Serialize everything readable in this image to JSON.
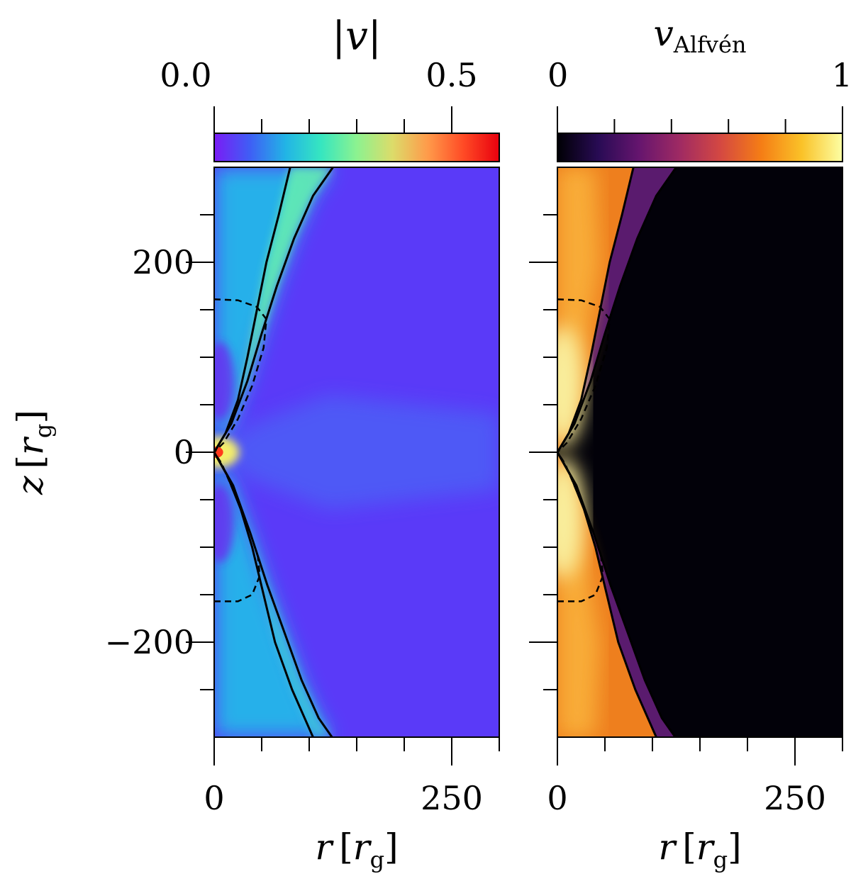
{
  "chart_data": [
    {
      "type": "heatmap",
      "panel": "left",
      "quantity": "speed magnitude",
      "colorbar": {
        "label_main": "|v|",
        "range": [
          0.0,
          0.6
        ],
        "tick_labels": [
          "0.0",
          "0.5"
        ],
        "tick_values": [
          0.0,
          0.5
        ],
        "minor_ticks": [
          0.1,
          0.2,
          0.3,
          0.4
        ],
        "colormap": "rainbow (purple → blue → cyan → green → yellow → orange → red)",
        "colors": [
          "#7a1cf5",
          "#3f5ef5",
          "#22b4e6",
          "#36e6c0",
          "#8cf290",
          "#dcdc6a",
          "#ff9a4a",
          "#ff4a25",
          "#e8000e"
        ]
      },
      "xlabel_main": "r",
      "xlabel_unit": "r",
      "xlabel_unit_sub": "g",
      "ylabel_main": "z",
      "ylabel_unit": "r",
      "ylabel_unit_sub": "g",
      "xlim": [
        0,
        300
      ],
      "ylim": [
        -300,
        300
      ],
      "x_tick_labels": [
        "0",
        "250"
      ],
      "x_tick_values": [
        0,
        250
      ],
      "x_minor_ticks": [
        50,
        100,
        150,
        200,
        300
      ],
      "y_tick_labels": [
        "−200",
        "0",
        "200"
      ],
      "y_tick_values": [
        -200,
        0,
        200
      ],
      "y_minor_ticks": [
        -250,
        -150,
        -100,
        -50,
        50,
        100,
        150,
        250
      ],
      "field_description": {
        "background": "#5a3af8",
        "polar_funnel": "#27b0ea",
        "sheath_peak": "#66f0b0",
        "center_hotspot": "#ff3a1c"
      }
    },
    {
      "type": "heatmap",
      "panel": "right",
      "quantity": "Alfven speed",
      "colorbar": {
        "label_main": "v",
        "label_sub": "Alfvén",
        "range": [
          0,
          1
        ],
        "tick_labels": [
          "0",
          "1"
        ],
        "tick_values": [
          0,
          1
        ],
        "minor_ticks": [
          0.2,
          0.4,
          0.6,
          0.8
        ],
        "colormap": "inferno",
        "colors": [
          "#000004",
          "#280b54",
          "#65156e",
          "#9f2a63",
          "#d44842",
          "#f57d15",
          "#fac228",
          "#fcffa4"
        ]
      },
      "xlabel_main": "r",
      "xlabel_unit": "r",
      "xlabel_unit_sub": "g",
      "xlim": [
        0,
        300
      ],
      "ylim": [
        -300,
        300
      ],
      "x_tick_labels": [
        "0",
        "250"
      ],
      "x_tick_values": [
        0,
        250
      ],
      "x_minor_ticks": [
        50,
        100,
        150,
        200,
        300
      ],
      "y_minor_ticks": [
        -250,
        -200,
        -150,
        -100,
        -50,
        0,
        50,
        100,
        150,
        200,
        250
      ],
      "field_description": {
        "background": "#020109",
        "funnel_outer": "#ee7f1e",
        "funnel_mid": "#f9b13a",
        "funnel_inner": "#f9ee9c"
      }
    }
  ],
  "contours": {
    "solid_upper": [
      [
        0,
        0
      ],
      [
        12,
        20
      ],
      [
        25,
        55
      ],
      [
        35,
        100
      ],
      [
        45,
        150
      ],
      [
        55,
        200
      ],
      [
        68,
        250
      ],
      [
        80,
        300
      ]
    ],
    "solid_upper_outer": [
      [
        0,
        0
      ],
      [
        18,
        30
      ],
      [
        35,
        75
      ],
      [
        50,
        125
      ],
      [
        66,
        175
      ],
      [
        84,
        225
      ],
      [
        104,
        270
      ],
      [
        125,
        300
      ]
    ],
    "solid_lower": [
      [
        0,
        0
      ],
      [
        14,
        -25
      ],
      [
        28,
        -60
      ],
      [
        40,
        -100
      ],
      [
        52,
        -150
      ],
      [
        64,
        -200
      ],
      [
        82,
        -250
      ],
      [
        104,
        -300
      ]
    ],
    "solid_lower_outer": [
      [
        0,
        0
      ],
      [
        20,
        -35
      ],
      [
        38,
        -85
      ],
      [
        56,
        -140
      ],
      [
        74,
        -190
      ],
      [
        92,
        -240
      ],
      [
        110,
        -280
      ],
      [
        124,
        -300
      ]
    ],
    "dashed_upper": [
      [
        0,
        161
      ],
      [
        25,
        160
      ],
      [
        45,
        153
      ],
      [
        55,
        140
      ],
      [
        52,
        110
      ],
      [
        40,
        70
      ],
      [
        25,
        35
      ],
      [
        10,
        10
      ],
      [
        0,
        0
      ]
    ],
    "dashed_lower": [
      [
        0,
        -157
      ],
      [
        25,
        -157
      ],
      [
        40,
        -150
      ],
      [
        48,
        -130
      ],
      [
        46,
        -110
      ],
      [
        38,
        -85
      ],
      [
        22,
        -45
      ],
      [
        8,
        -12
      ],
      [
        0,
        0
      ]
    ]
  }
}
